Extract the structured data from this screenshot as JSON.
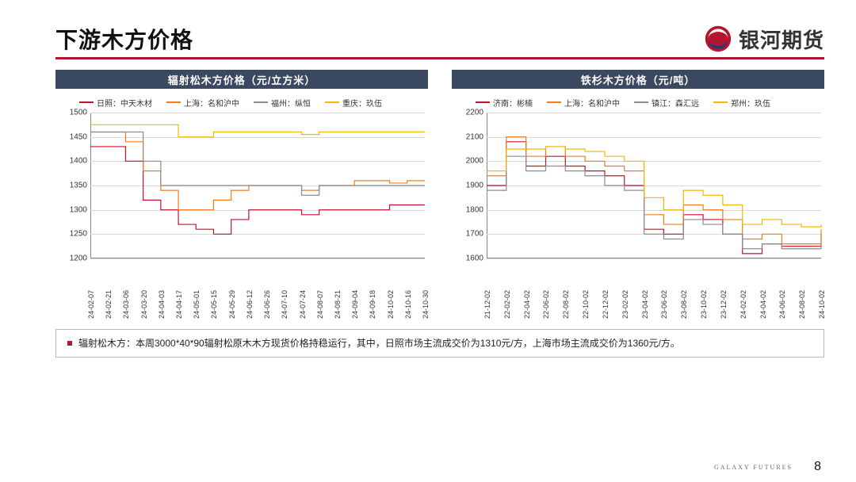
{
  "page_title": "下游木方价格",
  "brand_text": "银河期货",
  "brand_colors": {
    "red": "#b5162f",
    "blue": "#1a3e7a",
    "swirl_accent": "#e6e6e6"
  },
  "title_underline_color": "#b5162f",
  "subheader_bg": "#3b4960",
  "subheader_fg": "#ffffff",
  "grid_color": "#d9d9d9",
  "axis_color": "#888888",
  "text_color": "#333333",
  "footer_brand": "GALAXY  FUTURES",
  "page_number": "8",
  "note_bullet_color": "#b5162f",
  "note_text": "辐射松木方：本周3000*40*90辐射松原木木方现货价格持稳运行，其中，日照市场主流成交价为1310元/方，上海市场主流成交价为1360元/方。",
  "chart_left": {
    "title": "辐射松木方价格（元/立方米）",
    "ylim": [
      1200,
      1500
    ],
    "ytick_step": 50,
    "x_categories": [
      "24-02-07",
      "24-02-21",
      "24-03-06",
      "24-03-20",
      "24-04-03",
      "24-04-17",
      "24-05-01",
      "24-05-15",
      "24-05-29",
      "24-06-12",
      "24-06-26",
      "24-07-10",
      "24-07-24",
      "24-08-07",
      "24-08-21",
      "24-09-04",
      "24-09-18",
      "24-10-02",
      "24-10-16",
      "24-10-30"
    ],
    "series": [
      {
        "name": "日照：中天木材",
        "color": "#c8102e",
        "values": [
          1430,
          1430,
          1400,
          1320,
          1300,
          1270,
          1260,
          1250,
          1280,
          1300,
          1300,
          1300,
          1290,
          1300,
          1300,
          1300,
          1300,
          1310,
          1310,
          1310
        ]
      },
      {
        "name": "上海：名和沪中",
        "color": "#f07c1f",
        "values": [
          1460,
          1460,
          1440,
          1380,
          1340,
          1300,
          1300,
          1320,
          1340,
          1350,
          1350,
          1350,
          1340,
          1350,
          1350,
          1360,
          1360,
          1355,
          1360,
          1360
        ]
      },
      {
        "name": "福州：纵恒",
        "color": "#8c8c8c",
        "values": [
          1460,
          1460,
          1460,
          1400,
          1350,
          1350,
          1350,
          1350,
          1350,
          1350,
          1350,
          1350,
          1330,
          1350,
          1350,
          1350,
          1350,
          1350,
          1350,
          1350
        ]
      },
      {
        "name": "重庆：玖伍",
        "color": "#f2b705",
        "values": [
          1475,
          1475,
          1475,
          1475,
          1475,
          1450,
          1450,
          1460,
          1460,
          1460,
          1460,
          1460,
          1455,
          1460,
          1460,
          1460,
          1460,
          1460,
          1460,
          1460
        ]
      }
    ]
  },
  "chart_right": {
    "title": "铁杉木方价格（元/吨）",
    "ylim": [
      1600,
      2200
    ],
    "ytick_step": 100,
    "x_categories": [
      "21-12-02",
      "22-02-02",
      "22-04-02",
      "22-06-02",
      "22-08-02",
      "22-10-02",
      "22-12-02",
      "23-02-02",
      "23-04-02",
      "23-06-02",
      "23-08-02",
      "23-10-02",
      "23-12-02",
      "24-02-02",
      "24-04-02",
      "24-06-02",
      "24-08-02",
      "24-10-02"
    ],
    "series": [
      {
        "name": "济南：彬楠",
        "color": "#c8102e",
        "values": [
          1900,
          2080,
          1980,
          2020,
          1980,
          1960,
          1940,
          1900,
          1720,
          1700,
          1780,
          1760,
          1700,
          1620,
          1660,
          1650,
          1650,
          1700
        ]
      },
      {
        "name": "上海：名和沪中",
        "color": "#f07c1f",
        "values": [
          1940,
          2100,
          2020,
          2060,
          2020,
          2000,
          1980,
          1960,
          1780,
          1740,
          1820,
          1800,
          1760,
          1680,
          1700,
          1660,
          1660,
          1720
        ]
      },
      {
        "name": "镇江：森汇远",
        "color": "#8c8c8c",
        "values": [
          1880,
          2020,
          1960,
          1980,
          1960,
          1940,
          1900,
          1880,
          1700,
          1680,
          1760,
          1740,
          1700,
          1640,
          1660,
          1640,
          1640,
          1660
        ]
      },
      {
        "name": "郑州：玖伍",
        "color": "#f2b705",
        "values": [
          1960,
          2050,
          2050,
          2060,
          2050,
          2040,
          2020,
          2000,
          1850,
          1800,
          1880,
          1860,
          1820,
          1740,
          1760,
          1740,
          1730,
          1740
        ]
      }
    ]
  }
}
